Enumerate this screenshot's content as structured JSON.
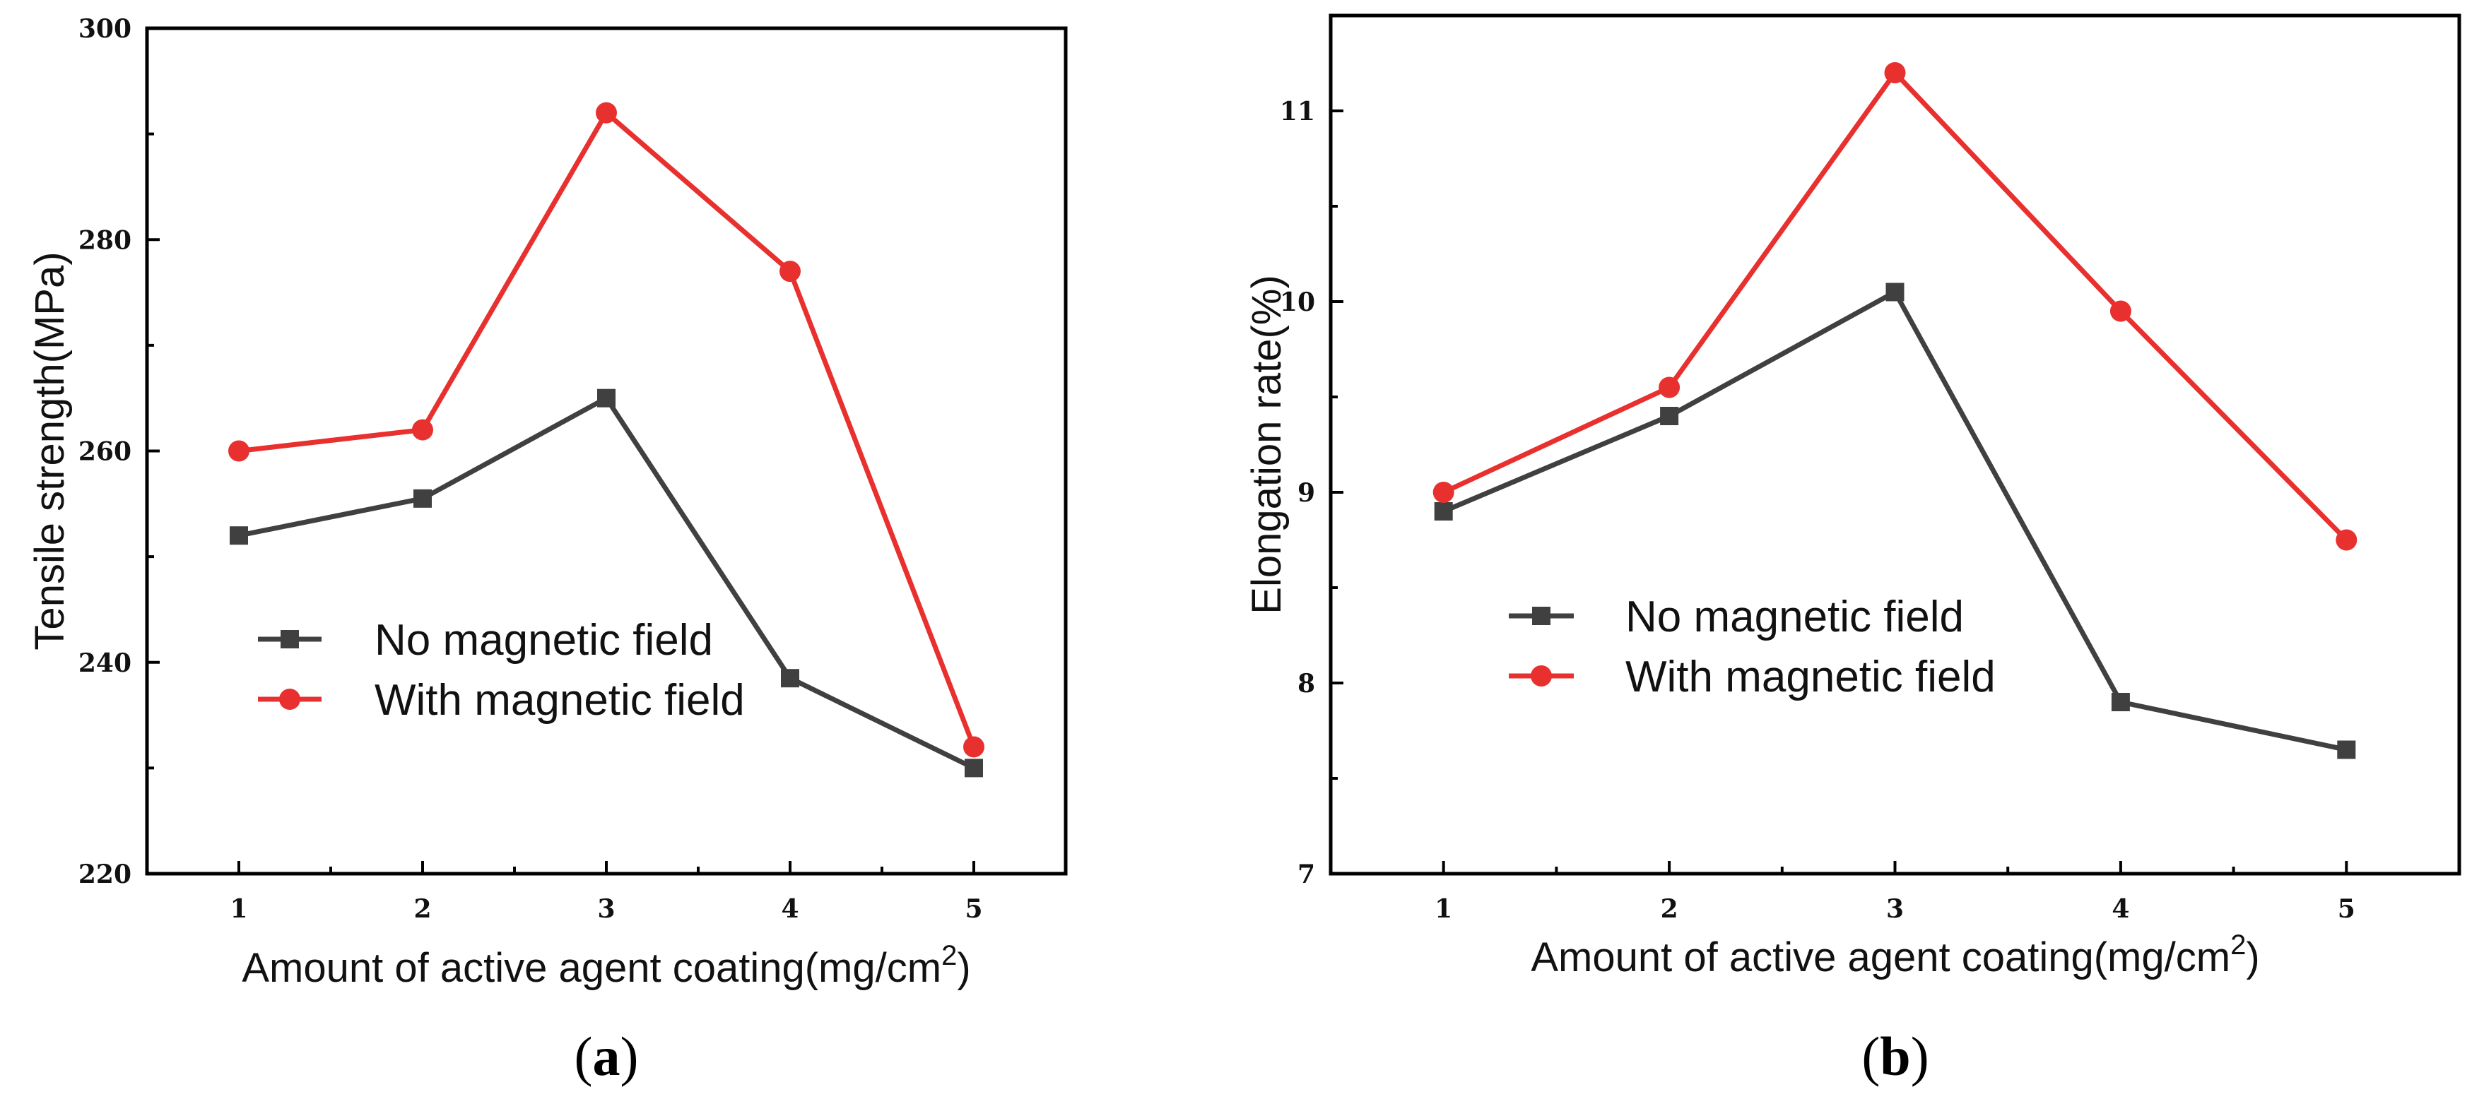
{
  "chart_data": [
    {
      "type": "line",
      "panel": "a",
      "panel_label": {
        "open": "(",
        "letter": "a",
        "close": ")"
      },
      "title": "",
      "xlabel": "Amount of active agent coating(mg/cm",
      "xlabel_sup": "2",
      "xlabel_close": ")",
      "ylabel": "Tensile strength(MPa)",
      "x": [
        1,
        2,
        3,
        4,
        5
      ],
      "x_tick_labels": [
        "1",
        "2",
        "3",
        "4",
        "5"
      ],
      "xlim": [
        0.5,
        5.5
      ],
      "ylim": [
        220,
        300
      ],
      "y_ticks": [
        220,
        240,
        260,
        280,
        300
      ],
      "y_tick_labels": [
        "220",
        "240",
        "260",
        "280",
        "300"
      ],
      "y_minor_ticks": [
        230,
        250,
        270,
        290
      ],
      "grid": false,
      "legend_position": "center-left",
      "series": [
        {
          "name": "No magnetic field",
          "marker": "square",
          "color": "#404040",
          "values": [
            252,
            255.5,
            265,
            238.5,
            230
          ]
        },
        {
          "name": "With magnetic field",
          "marker": "circle",
          "color": "#e8312f",
          "values": [
            260,
            262,
            292,
            277,
            232
          ]
        }
      ]
    },
    {
      "type": "line",
      "panel": "b",
      "panel_label": {
        "open": "(",
        "letter": "b",
        "close": ")"
      },
      "title": "",
      "xlabel": "Amount of active agent coating(mg/cm",
      "xlabel_sup": "2",
      "xlabel_close": ")",
      "ylabel": "Elongation rate(%)",
      "x": [
        1,
        2,
        3,
        4,
        5
      ],
      "x_tick_labels": [
        "1",
        "2",
        "3",
        "4",
        "5"
      ],
      "xlim": [
        0.5,
        5.5
      ],
      "ylim": [
        7,
        11.5
      ],
      "y_ticks": [
        7,
        8,
        9,
        10,
        11
      ],
      "y_tick_labels": [
        "7",
        "8",
        "9",
        "10",
        "11"
      ],
      "y_minor_ticks": [
        7.5,
        8.5,
        9.5,
        10.5
      ],
      "grid": false,
      "legend_position": "center-left",
      "series": [
        {
          "name": "No magnetic field",
          "marker": "square",
          "color": "#404040",
          "values": [
            8.9,
            9.4,
            10.05,
            7.9,
            7.65
          ]
        },
        {
          "name": "With magnetic field",
          "marker": "circle",
          "color": "#e8312f",
          "values": [
            9.0,
            9.55,
            11.2,
            9.95,
            8.75
          ]
        }
      ]
    }
  ]
}
